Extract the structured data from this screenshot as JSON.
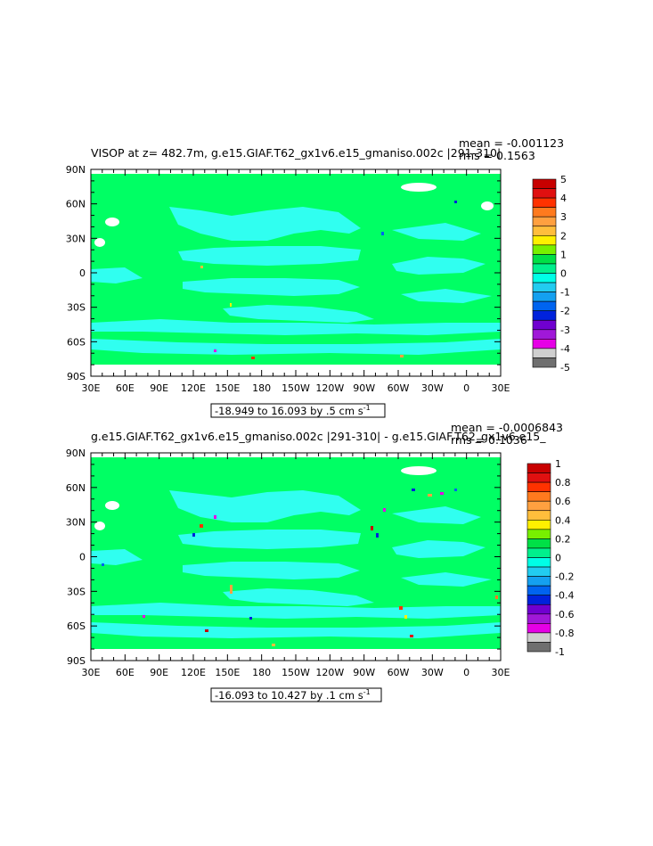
{
  "chart_data": [
    {
      "type": "heatmap",
      "title": "VISOP at z= 482.7m, g.e15.GIAF.T62_gx1v6.e15_gmaniso.002c |291-310|",
      "stats": {
        "mean": "mean = -0.001123",
        "rms": "rms = 0.1563"
      },
      "lat_labels": [
        "90N",
        "60N",
        "30N",
        "0",
        "30S",
        "60S",
        "90S"
      ],
      "lon_labels": [
        "30E",
        "60E",
        "90E",
        "120E",
        "150E",
        "180",
        "150W",
        "120W",
        "90W",
        "60W",
        "30W",
        "0",
        "30E"
      ],
      "range_label": "-18.949 to 16.093 by .5 cm s",
      "range_unit_sup": "-1",
      "colorbar": {
        "levels": [
          "5",
          "4",
          "3",
          "2",
          "1",
          "0",
          "-1",
          "-2",
          "-3",
          "-4",
          "-5"
        ],
        "colors": [
          "#c80000",
          "#e01010",
          "#ff3200",
          "#ff7a1e",
          "#ffa040",
          "#ffbe3c",
          "#fff000",
          "#78f000",
          "#00e046",
          "#00f08c",
          "#00ffe6",
          "#22ccf0",
          "#14a0f0",
          "#0064f0",
          "#0022dc",
          "#7000d0",
          "#a018d8",
          "#e600e6",
          "#cfcfcf",
          "#6f6f6f"
        ]
      }
    },
    {
      "type": "heatmap",
      "title": "g.e15.GIAF.T62_gx1v6.e15_gmaniso.002c |291-310| - g.e15.GIAF.T62_gx1v6.e15_",
      "stats": {
        "mean": "mean = -0.0006843",
        "rms": "rms = 0.1036"
      },
      "lat_labels": [
        "90N",
        "60N",
        "30N",
        "0",
        "30S",
        "60S",
        "90S"
      ],
      "lon_labels": [
        "30E",
        "60E",
        "90E",
        "120E",
        "150E",
        "180",
        "150W",
        "120W",
        "90W",
        "60W",
        "30W",
        "0",
        "30E"
      ],
      "range_label": "-16.093 to 10.427 by .1 cm s",
      "range_unit_sup": "-1",
      "colorbar": {
        "levels": [
          "1",
          "0.8",
          "0.6",
          "0.4",
          "0.2",
          "0",
          "-0.2",
          "-0.4",
          "-0.6",
          "-0.8",
          "-1"
        ],
        "colors": [
          "#c80000",
          "#e01010",
          "#ff3200",
          "#ff7a1e",
          "#ffa040",
          "#ffbe3c",
          "#fff000",
          "#78f000",
          "#00e046",
          "#00f08c",
          "#00ffe6",
          "#22ccf0",
          "#14a0f0",
          "#0064f0",
          "#0022dc",
          "#7000d0",
          "#a018d8",
          "#e600e6",
          "#cfcfcf",
          "#6f6f6f"
        ]
      }
    }
  ]
}
